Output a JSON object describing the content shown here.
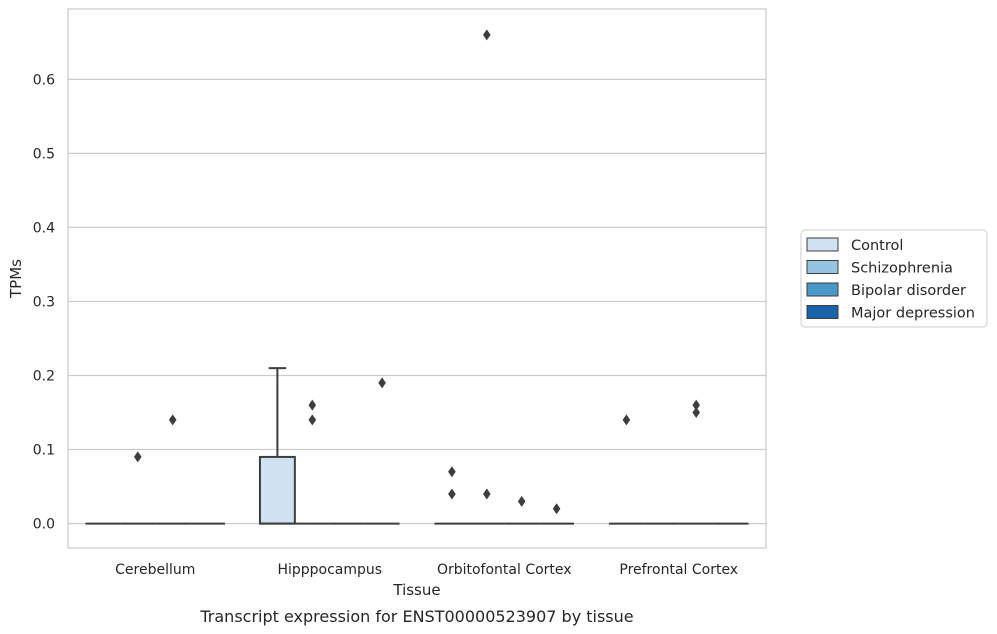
{
  "chart_data": {
    "type": "box",
    "xlabel": "Tissue",
    "ylabel": "TPMs",
    "caption": "Transcript expression for ENST00000523907 by tissue",
    "categories": [
      "Cerebellum",
      "Hipppocampus",
      "Orbitofontal Cortex",
      "Prefrontal Cortex"
    ],
    "ylim": [
      -0.033,
      0.695
    ],
    "yticks": [
      "0.0",
      "0.1",
      "0.2",
      "0.3",
      "0.4",
      "0.5",
      "0.6"
    ],
    "grid": true,
    "legend_position": "right",
    "series": [
      {
        "name": "Control",
        "color": "#d0e1f2",
        "boxes": [
          {
            "q1": 0,
            "median": 0,
            "q3": 0,
            "whisker_low": 0,
            "whisker_high": 0,
            "outliers": []
          },
          {
            "q1": 0,
            "median": 0,
            "q3": 0.09,
            "whisker_low": 0,
            "whisker_high": 0.21,
            "outliers": []
          },
          {
            "q1": 0,
            "median": 0,
            "q3": 0,
            "whisker_low": 0,
            "whisker_high": 0,
            "outliers": [
              0.07,
              0.04
            ]
          },
          {
            "q1": 0,
            "median": 0,
            "q3": 0,
            "whisker_low": 0,
            "whisker_high": 0,
            "outliers": [
              0.14
            ]
          }
        ]
      },
      {
        "name": "Schizophrenia",
        "color": "#94c4df",
        "boxes": [
          {
            "q1": 0,
            "median": 0,
            "q3": 0,
            "whisker_low": 0,
            "whisker_high": 0,
            "outliers": [
              0.09
            ]
          },
          {
            "q1": 0,
            "median": 0,
            "q3": 0,
            "whisker_low": 0,
            "whisker_high": 0,
            "outliers": [
              0.16,
              0.14
            ]
          },
          {
            "q1": 0,
            "median": 0,
            "q3": 0,
            "whisker_low": 0,
            "whisker_high": 0,
            "outliers": [
              0.66,
              0.04
            ]
          },
          {
            "q1": 0,
            "median": 0,
            "q3": 0,
            "whisker_low": 0,
            "whisker_high": 0,
            "outliers": []
          }
        ]
      },
      {
        "name": "Bipolar disorder",
        "color": "#4a98c9",
        "boxes": [
          {
            "q1": 0,
            "median": 0,
            "q3": 0,
            "whisker_low": 0,
            "whisker_high": 0,
            "outliers": [
              0.14
            ]
          },
          {
            "q1": 0,
            "median": 0,
            "q3": 0,
            "whisker_low": 0,
            "whisker_high": 0,
            "outliers": []
          },
          {
            "q1": 0,
            "median": 0,
            "q3": 0,
            "whisker_low": 0,
            "whisker_high": 0,
            "outliers": [
              0.03
            ]
          },
          {
            "q1": 0,
            "median": 0,
            "q3": 0,
            "whisker_low": 0,
            "whisker_high": 0,
            "outliers": [
              0.16,
              0.15
            ]
          }
        ]
      },
      {
        "name": "Major depression",
        "color": "#1764ab",
        "boxes": [
          {
            "q1": 0,
            "median": 0,
            "q3": 0,
            "whisker_low": 0,
            "whisker_high": 0,
            "outliers": []
          },
          {
            "q1": 0,
            "median": 0,
            "q3": 0,
            "whisker_low": 0,
            "whisker_high": 0,
            "outliers": [
              0.19
            ]
          },
          {
            "q1": 0,
            "median": 0,
            "q3": 0,
            "whisker_low": 0,
            "whisker_high": 0,
            "outliers": [
              0.02
            ]
          },
          {
            "q1": 0,
            "median": 0,
            "q3": 0,
            "whisker_low": 0,
            "whisker_high": 0,
            "outliers": []
          }
        ]
      }
    ]
  }
}
